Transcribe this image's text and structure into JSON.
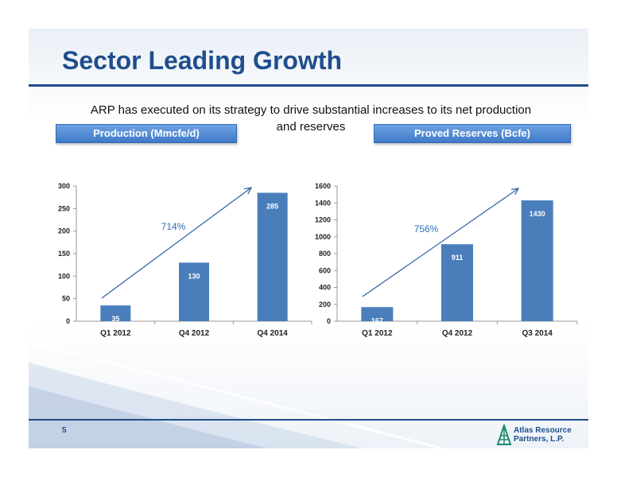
{
  "slide": {
    "title": "Sector Leading Growth",
    "subtitle_line1": "ARP has executed on its strategy to drive substantial increases to its net production",
    "subtitle_line2": "and reserves",
    "page_number": "5",
    "logo_line1": "Atlas Resource",
    "logo_line2": "Partners, L.P.",
    "colors": {
      "accent": "#1f4e8c",
      "bar": "#4a7ebb",
      "header_bar": "#4a84cf"
    }
  },
  "chart_data": [
    {
      "type": "bar",
      "title": "Production (Mmcfe/d)",
      "categories": [
        "Q1 2012",
        "Q4 2012",
        "Q4 2014"
      ],
      "values": [
        35,
        130,
        285
      ],
      "ylim": [
        0,
        300
      ],
      "yticks": [
        0,
        50,
        100,
        150,
        200,
        250,
        300
      ],
      "annotation": "714%"
    },
    {
      "type": "bar",
      "title": "Proved Reserves (Bcfe)",
      "categories": [
        "Q1 2012",
        "Q4 2012",
        "Q3 2014"
      ],
      "values": [
        167,
        911,
        1430
      ],
      "ylim": [
        0,
        1600
      ],
      "yticks": [
        0,
        200,
        400,
        600,
        800,
        1000,
        1200,
        1400,
        1600
      ],
      "annotation": "756%"
    }
  ]
}
